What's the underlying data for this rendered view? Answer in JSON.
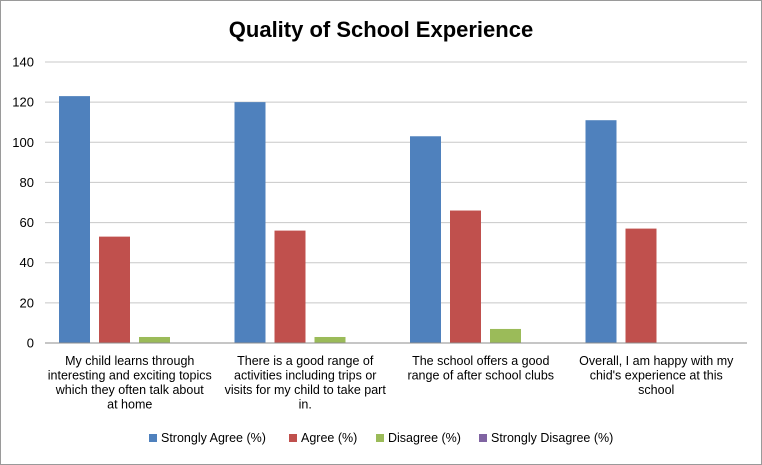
{
  "chart_data": {
    "type": "bar",
    "title": "Quality of School Experience",
    "xlabel": "",
    "ylabel": "",
    "ylim": [
      0,
      140
    ],
    "yticks": [
      0,
      20,
      40,
      60,
      80,
      100,
      120,
      140
    ],
    "grid": true,
    "legend_position": "bottom",
    "categories": [
      [
        "My child learns through",
        "interesting and exciting topics",
        "which they often talk about",
        "at home"
      ],
      [
        "There is a good range of",
        "activities including trips or",
        "visits for my child to take part",
        "in."
      ],
      [
        "The school offers a good",
        "range of after school clubs"
      ],
      [
        "Overall, I am happy with my",
        "chid's experience at this",
        "school"
      ]
    ],
    "series": [
      {
        "name": "Strongly Agree (%)",
        "color": "#4f81bd",
        "values": [
          123,
          120,
          103,
          111
        ]
      },
      {
        "name": "Agree (%)",
        "color": "#c0504d",
        "values": [
          53,
          56,
          66,
          57
        ]
      },
      {
        "name": "Disagree (%)",
        "color": "#9bbb59",
        "values": [
          3,
          3,
          7,
          0
        ]
      },
      {
        "name": "Strongly Disagree (%)",
        "color": "#8064a2",
        "values": [
          0,
          0,
          0,
          0
        ]
      }
    ]
  }
}
